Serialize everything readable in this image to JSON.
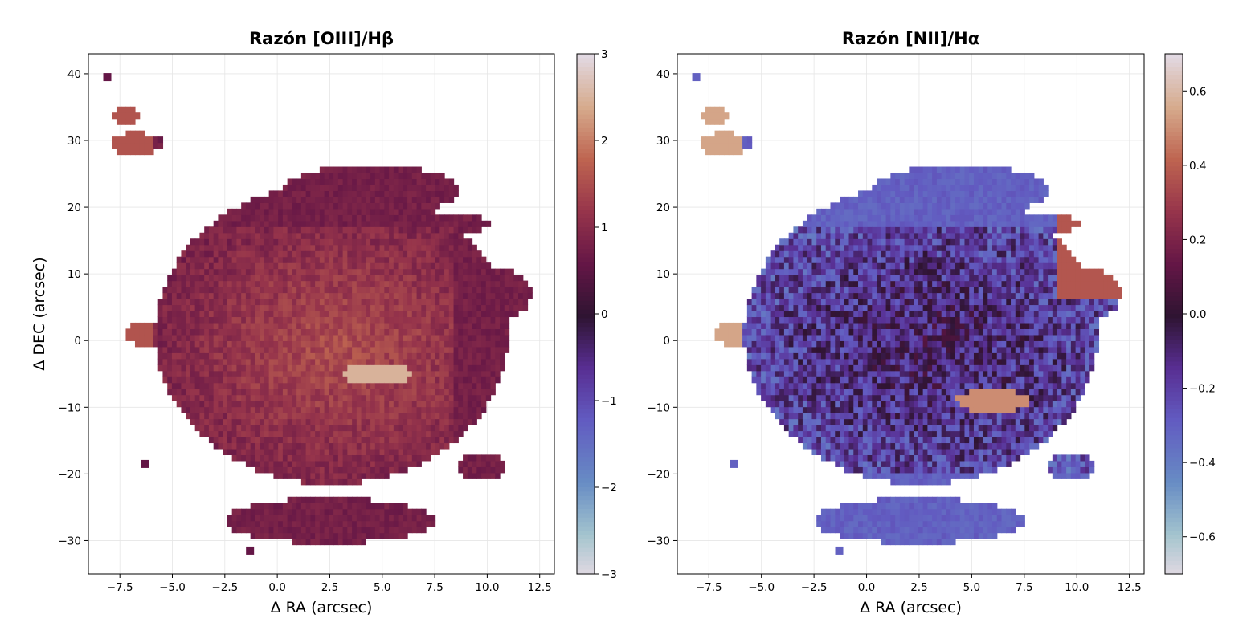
{
  "chart_data": [
    {
      "type": "heatmap",
      "title": "Razón [OIII]/Hβ",
      "xlabel": "Δ RA (arcsec)",
      "ylabel": "Δ DEC (arcsec)",
      "xlim": [
        -9.0,
        13.2
      ],
      "ylim": [
        -35,
        43
      ],
      "xticks": [
        -7.5,
        -5.0,
        -2.5,
        0.0,
        2.5,
        5.0,
        7.5,
        10.0,
        12.5
      ],
      "xtick_labels": [
        "−7.5",
        "−5.0",
        "−2.5",
        "0.0",
        "2.5",
        "5.0",
        "7.5",
        "10.0",
        "12.5"
      ],
      "yticks": [
        -30,
        -20,
        -10,
        0,
        10,
        20,
        30,
        40
      ],
      "ytick_labels": [
        "−30",
        "−20",
        "−10",
        "0",
        "10",
        "20",
        "30",
        "40"
      ],
      "grid": true,
      "colormap": "twilight_shifted",
      "colorbar": {
        "vmin": -3,
        "vmax": 3,
        "ticks": [
          -3,
          -2,
          -1,
          0,
          1,
          2,
          3
        ],
        "tick_labels": [
          "−3",
          "−2",
          "−1",
          "0",
          "1",
          "2",
          "3"
        ]
      },
      "map_description_values": {
        "typical_value_range": [
          0.2,
          2.8
        ],
        "core_value": 1.6,
        "outer_value": 0.8
      }
    },
    {
      "type": "heatmap",
      "title": "Razón [NII]/Hα",
      "xlabel": "Δ RA (arcsec)",
      "ylabel": "",
      "xlim": [
        -9.0,
        13.2
      ],
      "ylim": [
        -35,
        43
      ],
      "xticks": [
        -7.5,
        -5.0,
        -2.5,
        0.0,
        2.5,
        5.0,
        7.5,
        10.0,
        12.5
      ],
      "xtick_labels": [
        "−7.5",
        "−5.0",
        "−2.5",
        "0.0",
        "2.5",
        "5.0",
        "7.5",
        "10.0",
        "12.5"
      ],
      "yticks": [
        -30,
        -20,
        -10,
        0,
        10,
        20,
        30,
        40
      ],
      "ytick_labels": [
        "−30",
        "−20",
        "−10",
        "0",
        "10",
        "20",
        "30",
        "40"
      ],
      "grid": true,
      "colormap": "twilight_shifted",
      "colorbar": {
        "vmin": -0.7,
        "vmax": 0.7,
        "ticks": [
          -0.6,
          -0.4,
          -0.2,
          0.0,
          0.2,
          0.4,
          0.6
        ],
        "tick_labels": [
          "−0.6",
          "−0.4",
          "−0.2",
          "0.0",
          "0.2",
          "0.4",
          "0.6"
        ]
      },
      "map_description_values": {
        "typical_value_range": [
          -0.5,
          0.7
        ],
        "core_value": 0.0,
        "outer_value": -0.25
      }
    }
  ]
}
